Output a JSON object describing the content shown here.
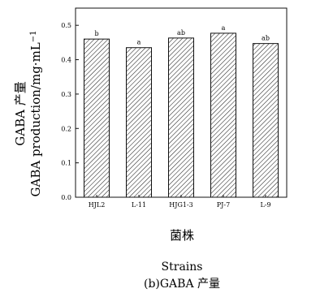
{
  "chart_data": {
    "type": "bar",
    "categories": [
      "HJL2",
      "L-11",
      "HJG1-3",
      "PJ-7",
      "L-9"
    ],
    "values": [
      0.46,
      0.435,
      0.463,
      0.477,
      0.447
    ],
    "annotations": [
      "b",
      "a",
      "ab",
      "a",
      "ab"
    ],
    "ylabel_cn": "GABA 产量",
    "ylabel_en": "GABA production/mg·mL",
    "ylabel_en_sup": "−1",
    "xlabel_cn": "菌株",
    "xlabel_en": "Strains",
    "caption": "(b)GABA 产量",
    "ylim": [
      0.0,
      0.55
    ],
    "yticks": [
      "0.0",
      "0.1",
      "0.2",
      "0.3",
      "0.4",
      "0.5"
    ],
    "bar_pattern": "diagonal-hatch",
    "bar_color": "#222222",
    "grid": false
  }
}
